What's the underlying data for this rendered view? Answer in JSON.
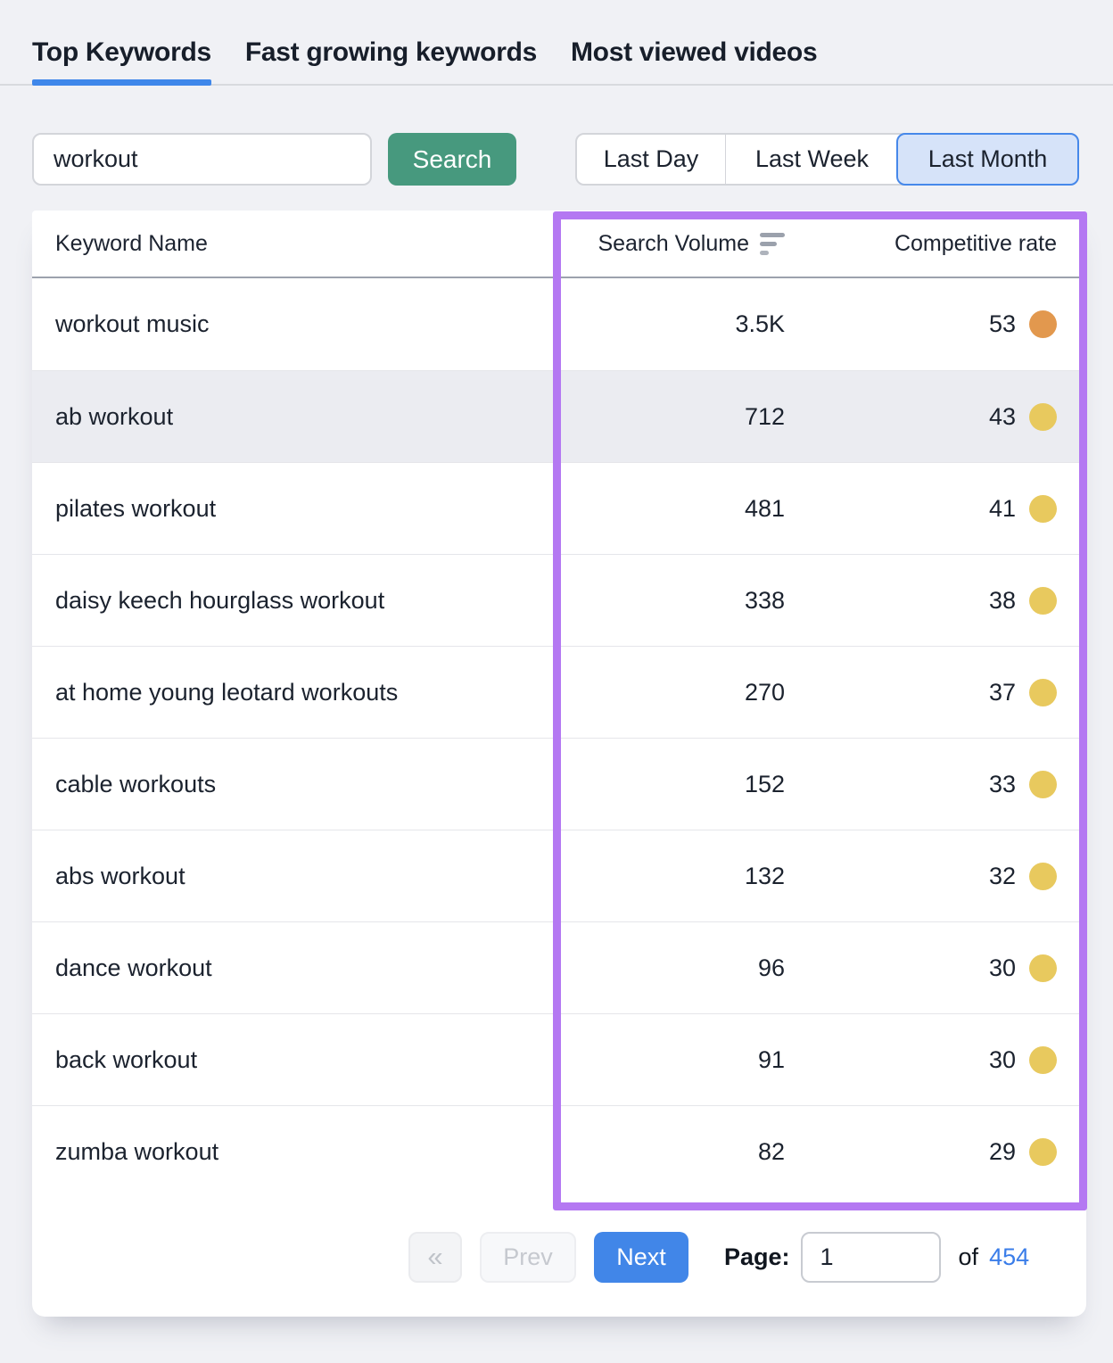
{
  "tabs": [
    {
      "label": "Top Keywords",
      "active": true
    },
    {
      "label": "Fast growing keywords",
      "active": false
    },
    {
      "label": "Most viewed videos",
      "active": false
    }
  ],
  "search": {
    "value": "workout",
    "button_label": "Search"
  },
  "time_filters": {
    "options": [
      {
        "label": "Last Day",
        "selected": false
      },
      {
        "label": "Last Week",
        "selected": false
      },
      {
        "label": "Last Month",
        "selected": true
      }
    ]
  },
  "table": {
    "columns": [
      "Keyword Name",
      "Search Volume",
      "Competitive rate"
    ],
    "sort_icon": "sort-descending-icon",
    "rows": [
      {
        "keyword": "workout music",
        "volume": "3.5K",
        "rate": "53",
        "dot_color": "#E2984E",
        "highlight": false
      },
      {
        "keyword": "ab workout",
        "volume": "712",
        "rate": "43",
        "dot_color": "#E8C95E",
        "highlight": true
      },
      {
        "keyword": "pilates workout",
        "volume": "481",
        "rate": "41",
        "dot_color": "#E8C95E",
        "highlight": false
      },
      {
        "keyword": "daisy keech hourglass workout",
        "volume": "338",
        "rate": "38",
        "dot_color": "#E8C95E",
        "highlight": false
      },
      {
        "keyword": "at home young leotard workouts",
        "volume": "270",
        "rate": "37",
        "dot_color": "#E8C95E",
        "highlight": false
      },
      {
        "keyword": "cable workouts",
        "volume": "152",
        "rate": "33",
        "dot_color": "#E8C95E",
        "highlight": false
      },
      {
        "keyword": "abs workout",
        "volume": "132",
        "rate": "32",
        "dot_color": "#E8C95E",
        "highlight": false
      },
      {
        "keyword": "dance workout",
        "volume": "96",
        "rate": "30",
        "dot_color": "#E8C95E",
        "highlight": false
      },
      {
        "keyword": "back workout",
        "volume": "91",
        "rate": "30",
        "dot_color": "#E8C95E",
        "highlight": false
      },
      {
        "keyword": "zumba workout",
        "volume": "82",
        "rate": "29",
        "dot_color": "#E8C95E",
        "highlight": false
      }
    ]
  },
  "pagination": {
    "first_label": "«",
    "prev_label": "Prev",
    "next_label": "Next",
    "page_label": "Page:",
    "page_value": "1",
    "of_label": "of",
    "total_pages": "454"
  },
  "colors": {
    "accent_blue": "#3F87EA",
    "button_green": "#47997E",
    "annotation_purple": "#B478F2",
    "dot_orange": "#E2984E",
    "dot_yellow": "#E8C95E",
    "selected_filter_bg": "#D6E3F9",
    "link_blue": "#3A7DE9"
  }
}
